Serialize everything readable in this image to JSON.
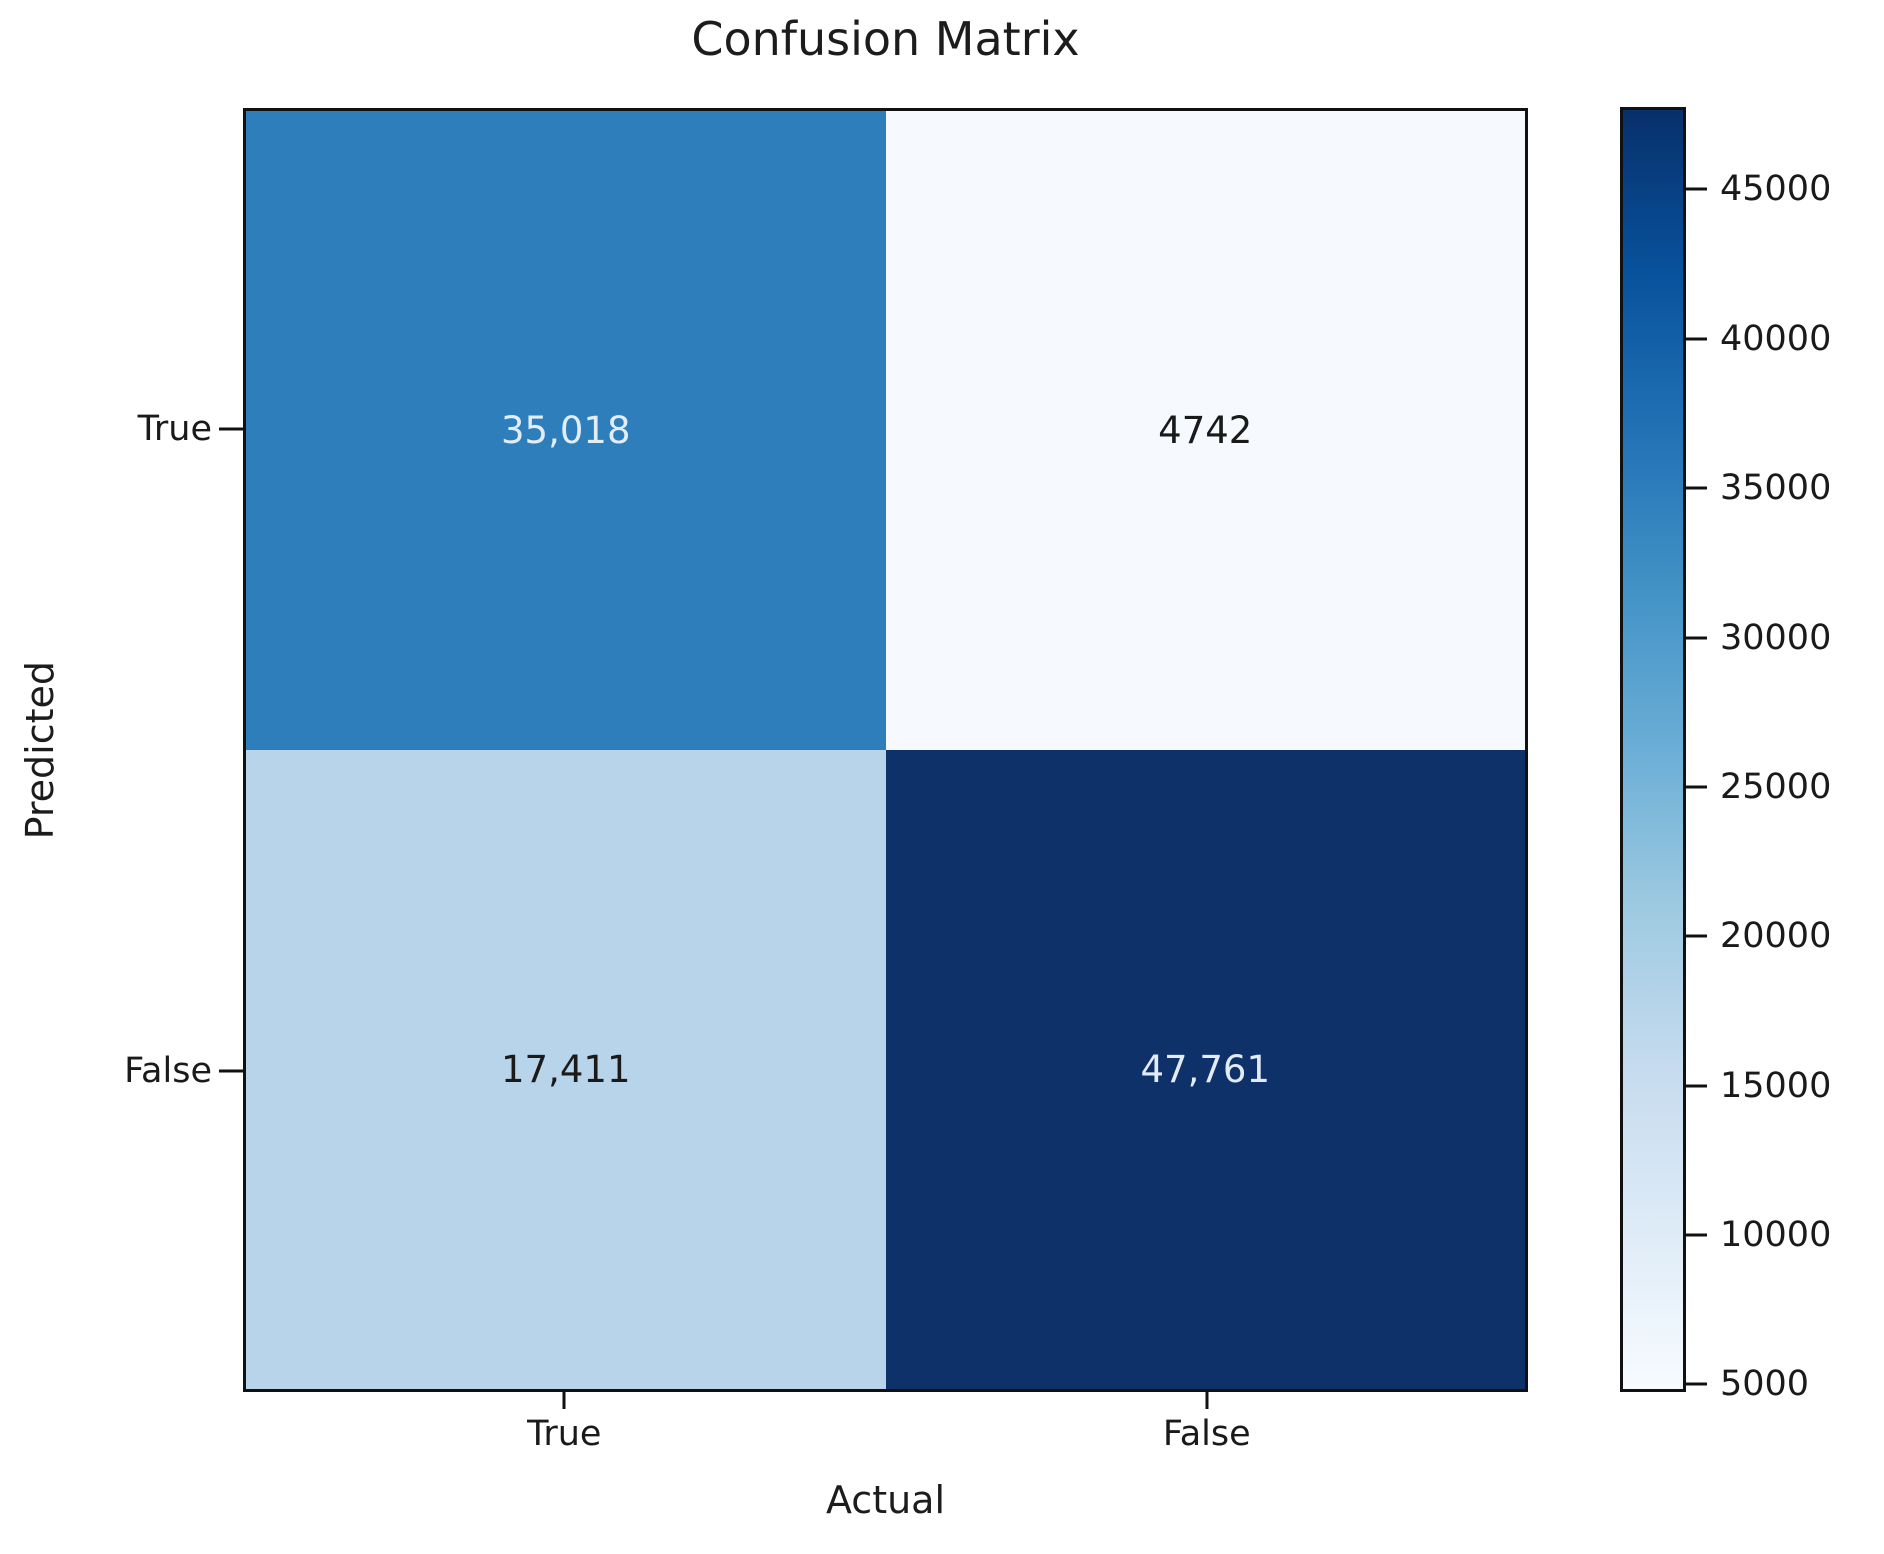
{
  "chart_data": {
    "type": "heatmap",
    "title": "Confusion Matrix",
    "xlabel": "Actual",
    "ylabel": "Predicted",
    "x_categories": [
      "True",
      "False"
    ],
    "y_categories": [
      "True",
      "False"
    ],
    "matrix": [
      [
        35018,
        4742
      ],
      [
        17411,
        47761
      ]
    ],
    "cell_labels": [
      [
        "35,018",
        "4742"
      ],
      [
        "17,411",
        "47,761"
      ]
    ],
    "cell_colors": [
      [
        "#2e7ebc",
        "#f6fafe"
      ],
      [
        "#b8d4ea",
        "#0f3169"
      ]
    ],
    "cell_text_colors": [
      [
        "#e3edf8",
        "#1a1a1a"
      ],
      [
        "#1a1a1a",
        "#e3ebf6"
      ]
    ],
    "legend_position": "right-colorbar",
    "grid": false,
    "colorbar": {
      "vmin": 4742,
      "vmax": 47761,
      "ticks": [
        45000,
        40000,
        35000,
        30000,
        25000,
        20000,
        15000,
        10000,
        5000
      ],
      "gradient_stops": [
        "#f7fbff 0%",
        "#deebf7 12.5%",
        "#c6dbef 25%",
        "#9ecae1 37.5%",
        "#6baed6 50%",
        "#4292c6 62.5%",
        "#2171b5 75%",
        "#08519c 87.5%",
        "#08306b 100%"
      ]
    }
  }
}
